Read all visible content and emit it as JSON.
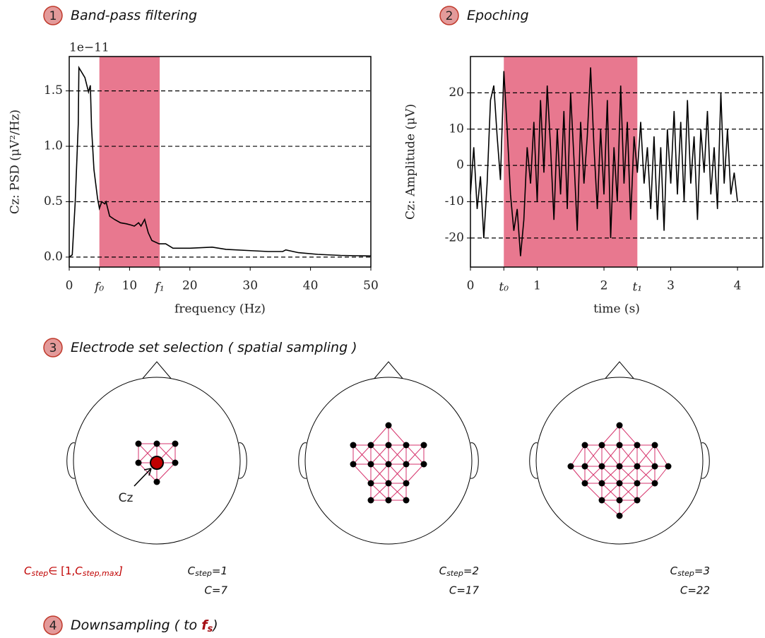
{
  "sections": [
    {
      "number": "1",
      "title": "Band-pass filtering"
    },
    {
      "number": "2",
      "title": "Epoching"
    },
    {
      "number": "3",
      "title": "Electrode set selection ( spatial sampling )"
    },
    {
      "number": "4",
      "title": "Downsampling ( to ",
      "symbol": "f",
      "symbol_sub": "s",
      "title_end": ")"
    }
  ],
  "chart_data": [
    {
      "type": "line",
      "color": "#000000",
      "x": [
        0,
        0.5,
        1,
        1.5,
        1.6,
        2.6,
        3.2,
        3.5,
        3.7,
        4.1,
        4.7,
        5.0,
        5.4,
        5.9,
        6.1,
        6.7,
        7.5,
        8.5,
        9.5,
        10.2,
        10.8,
        11.5,
        11.9,
        12.5,
        13.1,
        13.7,
        14.9,
        16,
        17.2,
        20,
        23.7,
        26,
        29.5,
        33,
        35.4,
        35.9,
        38,
        41.2,
        45,
        50
      ],
      "values": [
        0,
        0.02,
        0.5,
        1.2,
        1.71,
        1.62,
        1.49,
        1.55,
        1.17,
        0.79,
        0.53,
        0.44,
        0.5,
        0.48,
        0.5,
        0.37,
        0.34,
        0.31,
        0.3,
        0.29,
        0.28,
        0.31,
        0.28,
        0.34,
        0.22,
        0.15,
        0.12,
        0.12,
        0.08,
        0.08,
        0.09,
        0.07,
        0.06,
        0.05,
        0.05,
        0.065,
        0.04,
        0.025,
        0.015,
        0.01
      ],
      "xlim": [
        0,
        50
      ],
      "ylim": [
        -0.09,
        1.81
      ],
      "xticks": [
        0,
        10,
        20,
        30,
        40,
        50
      ],
      "yticks": [
        {
          "value": 0,
          "label": "0.0"
        },
        0.5,
        {
          "value": 1,
          "label": "1.0"
        },
        1.5
      ],
      "offset_label": "1e−11",
      "span": [
        5,
        15
      ],
      "span_color": "#e8788f",
      "span_ticks": [
        {
          "value": 5,
          "label": "f₀"
        },
        {
          "value": 15,
          "label": "f₁"
        }
      ],
      "span_tick_color": "#c8102e",
      "xlabel": "frequency (Hz)",
      "ylabel": "Cz: PSD (μV²/Hz)",
      "grid": true
    },
    {
      "type": "line",
      "color": "#000000",
      "x": [
        0,
        0.05,
        0.1,
        0.15,
        0.2,
        0.25,
        0.3,
        0.35,
        0.4,
        0.45,
        0.5,
        0.55,
        0.6,
        0.65,
        0.7,
        0.75,
        0.8,
        0.85,
        0.9,
        0.95,
        1,
        1.05,
        1.1,
        1.15,
        1.2,
        1.25,
        1.3,
        1.35,
        1.4,
        1.45,
        1.5,
        1.55,
        1.6,
        1.65,
        1.7,
        1.75,
        1.8,
        1.85,
        1.9,
        1.95,
        2,
        2.05,
        2.1,
        2.15,
        2.2,
        2.25,
        2.3,
        2.35,
        2.4,
        2.45,
        2.5,
        2.55,
        2.6,
        2.65,
        2.7,
        2.75,
        2.8,
        2.85,
        2.9,
        2.95,
        3,
        3.05,
        3.1,
        3.15,
        3.2,
        3.25,
        3.3,
        3.35,
        3.4,
        3.45,
        3.5,
        3.55,
        3.6,
        3.65,
        3.7,
        3.75,
        3.8,
        3.85,
        3.9,
        3.95,
        4
      ],
      "values": [
        -8,
        5,
        -12,
        -3,
        -20,
        -5,
        18,
        22,
        8,
        -4,
        26,
        10,
        -8,
        -18,
        -12,
        -25,
        -15,
        5,
        -5,
        12,
        -10,
        18,
        -2,
        22,
        5,
        -15,
        10,
        -8,
        15,
        -12,
        20,
        2,
        -18,
        12,
        -5,
        8,
        27,
        5,
        -12,
        10,
        -8,
        18,
        -20,
        5,
        -10,
        22,
        -5,
        12,
        -15,
        8,
        -2,
        12,
        -5,
        5,
        -12,
        8,
        -15,
        5,
        -18,
        10,
        -5,
        15,
        -8,
        12,
        -10,
        18,
        -5,
        8,
        -15,
        10,
        -2,
        15,
        -8,
        5,
        -12,
        20,
        -5,
        10,
        -8,
        -2,
        -10
      ],
      "xlim": [
        0,
        4.38
      ],
      "ylim": [
        -28,
        30
      ],
      "xticks": [
        0,
        1,
        2,
        3,
        4
      ],
      "yticks": [
        -20,
        -10,
        0,
        10,
        20
      ],
      "span": [
        0.5,
        2.5
      ],
      "span_color": "#e8788f",
      "span_ticks": [
        {
          "value": 0.5,
          "label": "t₀"
        },
        {
          "value": 2.5,
          "label": "t₁"
        }
      ],
      "span_tick_color": "#c8102e",
      "xlabel": "time (s)",
      "ylabel": "Cz: Amplitude (μV)",
      "grid": true
    }
  ],
  "montages": [
    {
      "step_symbol": "C",
      "step_subscript": "step",
      "step_text": "=1",
      "count_text": "C=7",
      "electrode_label": "Cz"
    },
    {
      "step_symbol": "C",
      "step_subscript": "step",
      "step_text": "=2",
      "count_text": "C=17"
    },
    {
      "step_symbol": "C",
      "step_subscript": "step",
      "step_text": "=3",
      "count_text": "C=22"
    }
  ],
  "step_range": [
    {
      "text": "C"
    },
    {
      "text": "step",
      "sub": true
    },
    {
      "text": "∈ [1,"
    },
    {
      "text": "C"
    },
    {
      "text": "step,max",
      "sub": true
    },
    {
      "text": "]"
    }
  ]
}
